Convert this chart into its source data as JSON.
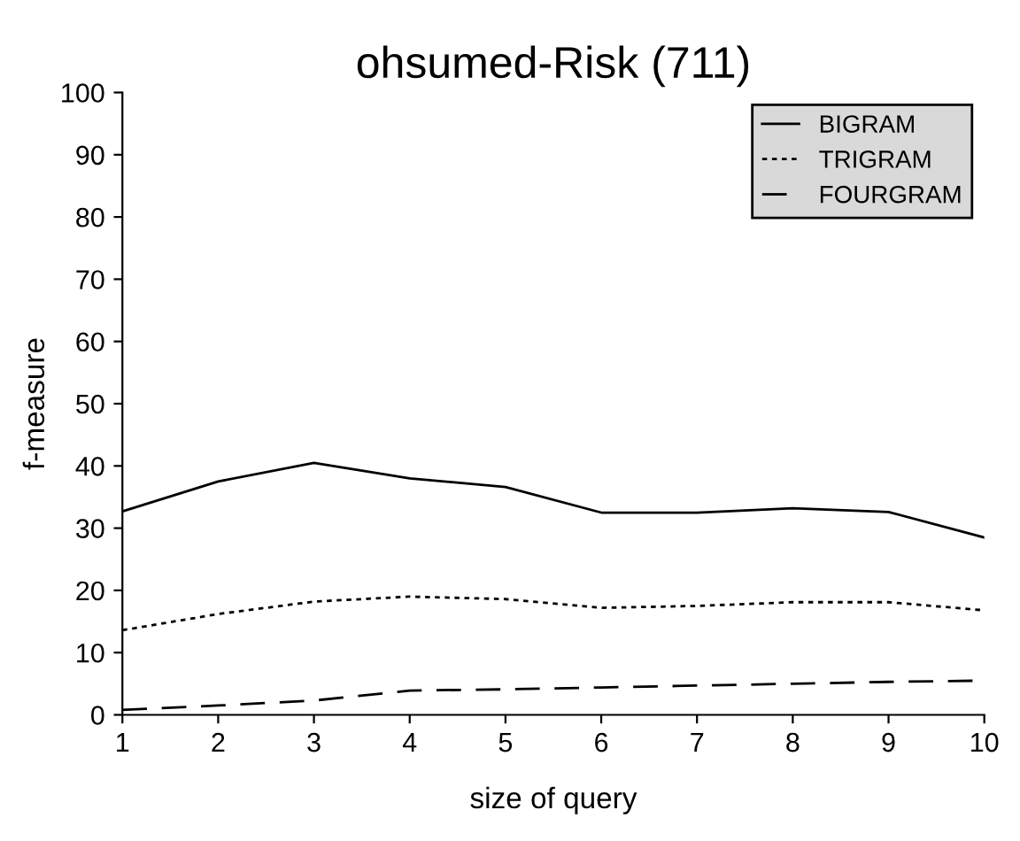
{
  "chart_data": {
    "type": "line",
    "title": "ohsumed-Risk (711)",
    "xlabel": "size of query",
    "ylabel": "f-measure",
    "x": [
      1,
      2,
      3,
      4,
      5,
      6,
      7,
      8,
      9,
      10
    ],
    "series": [
      {
        "name": "BIGRAM",
        "color": "#000000",
        "line_style": "solid",
        "values": [
          32.7,
          37.5,
          40.5,
          38,
          36.6,
          32.5,
          32.5,
          33.2,
          32.6,
          28.5
        ]
      },
      {
        "name": "TRIGRAM",
        "color": "#000000",
        "line_style": "dotted",
        "values": [
          13.6,
          16.2,
          18.2,
          19,
          18.6,
          17.2,
          17.5,
          18.1,
          18.1,
          16.8
        ]
      },
      {
        "name": "FOURGRAM",
        "color": "#000000",
        "line_style": "dashed",
        "values": [
          0.8,
          1.5,
          2.3,
          3.9,
          4.1,
          4.4,
          4.7,
          5,
          5.3,
          5.5
        ]
      }
    ],
    "xlim": [
      1,
      10
    ],
    "xticks": [
      1,
      2,
      3,
      4,
      5,
      6,
      7,
      8,
      9,
      10
    ],
    "ylim": [
      0,
      100
    ],
    "yticks": [
      0,
      10,
      20,
      30,
      40,
      50,
      60,
      70,
      80,
      90,
      100
    ],
    "grid": false,
    "legend": "top right"
  }
}
